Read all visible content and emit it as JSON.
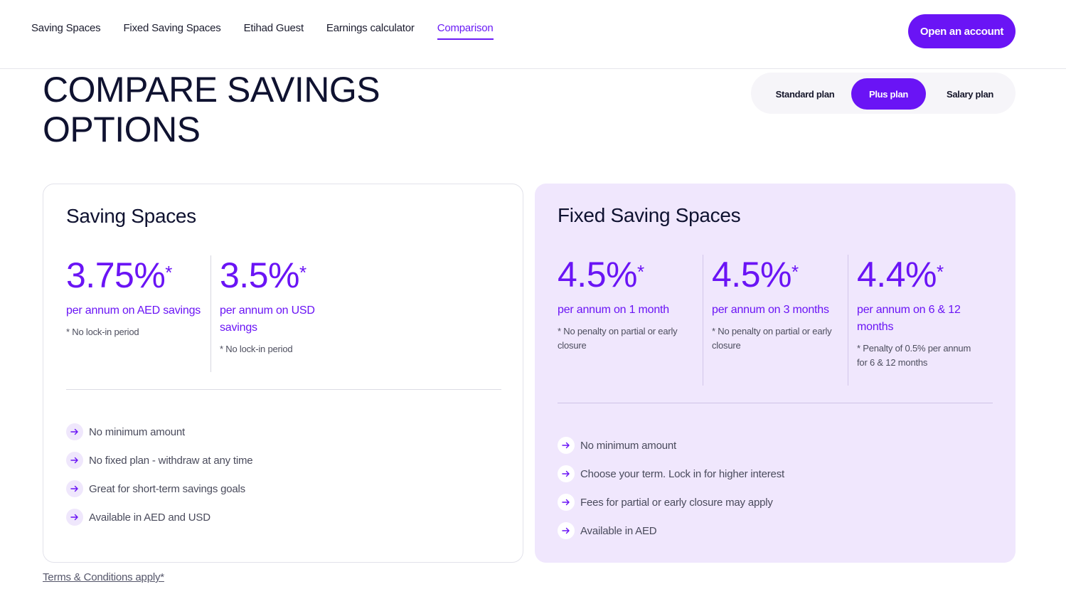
{
  "nav": {
    "links": [
      "Saving Spaces",
      "Fixed Saving Spaces",
      "Etihad Guest",
      "Earnings calculator",
      "Comparison"
    ],
    "active": "Comparison",
    "cta": "Open an account"
  },
  "page": {
    "title": "COMPARE SAVINGS OPTIONS"
  },
  "plans": {
    "options": [
      "Standard plan",
      "Plus plan",
      "Salary plan"
    ],
    "selected": "Plus plan"
  },
  "saving_spaces": {
    "title": "Saving Spaces",
    "rates": [
      {
        "value": "3.75%",
        "mark": "*",
        "desc": "per annum on AED savings",
        "note": "* No lock-in period"
      },
      {
        "value": "3.5%",
        "mark": "*",
        "desc": "per annum on USD savings",
        "note": "* No lock-in period"
      }
    ],
    "features": [
      "No minimum amount",
      "No fixed plan - withdraw at any time",
      "Great for short-term savings goals",
      "Available in AED and USD"
    ]
  },
  "fixed_saving_spaces": {
    "title": "Fixed Saving Spaces",
    "rates": [
      {
        "value": "4.5%",
        "mark": "*",
        "desc": "per annum on 1 month",
        "note": "* No penalty on partial or early closure"
      },
      {
        "value": "4.5%",
        "mark": "*",
        "desc": "per annum on 3 months",
        "note": "* No penalty on partial or early closure"
      },
      {
        "value": "4.4%",
        "mark": "*",
        "desc": "per annum on 6 & 12 months",
        "note": "* Penalty of 0.5% per annum for 6 & 12 months"
      }
    ],
    "features": [
      "No minimum amount",
      "Choose your term. Lock in for higher interest",
      "Fees for partial or early closure may apply",
      "Available in AED"
    ]
  },
  "footer": {
    "terms": "Terms & Conditions apply*"
  },
  "icons": {
    "feature_bullet": "arrow-right-icon"
  },
  "colors": {
    "accent": "#6a14f5",
    "card_highlight": "#f0e7fd",
    "text_dark": "#0f1230"
  }
}
